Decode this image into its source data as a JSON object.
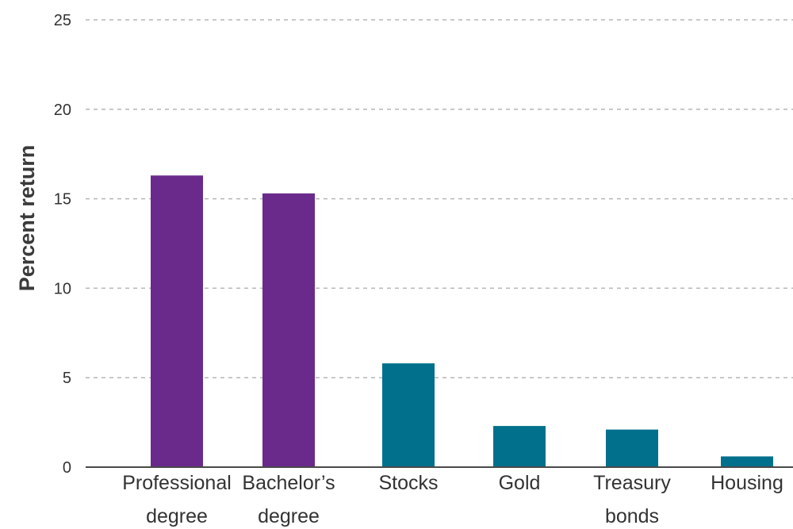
{
  "chart_data": {
    "type": "bar",
    "title": "",
    "xlabel": "",
    "ylabel": "Percent return",
    "ylim": [
      0,
      25
    ],
    "yticks": [
      0,
      5,
      10,
      15,
      20,
      25
    ],
    "grid": true,
    "categories": [
      [
        "Professional",
        "degree"
      ],
      [
        "Bachelor’s",
        "degree"
      ],
      [
        "Stocks"
      ],
      [
        "Gold"
      ],
      [
        "Treasury",
        "bonds"
      ],
      [
        "Housing"
      ]
    ],
    "values": [
      16.3,
      15.3,
      5.8,
      2.3,
      2.1,
      0.6
    ],
    "colors": [
      "#6a2a8c",
      "#6a2a8c",
      "#00708c",
      "#00708c",
      "#00708c",
      "#00708c"
    ]
  }
}
